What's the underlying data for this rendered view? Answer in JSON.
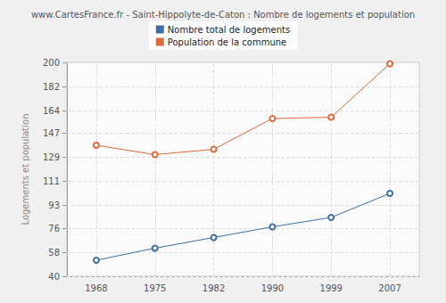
{
  "chart_data": {
    "type": "line",
    "title": "www.CartesFrance.fr - Saint-Hippolyte-de-Caton : Nombre de logements et population",
    "ylabel": "Logements et population",
    "categories": [
      "1968",
      "1975",
      "1982",
      "1990",
      "1999",
      "2007"
    ],
    "series": [
      {
        "name": "Nombre total de logements",
        "color": "#3d6fa3",
        "values": [
          52,
          61,
          69,
          77,
          84,
          102
        ]
      },
      {
        "name": "Population de la commune",
        "color": "#e2693b",
        "values": [
          138,
          131,
          135,
          158,
          159,
          199
        ]
      }
    ],
    "ylim": [
      40,
      200
    ],
    "yticks": [
      40,
      58,
      76,
      93,
      111,
      129,
      147,
      164,
      182,
      200
    ],
    "grid": true,
    "legend": "top",
    "marker": "circle"
  }
}
